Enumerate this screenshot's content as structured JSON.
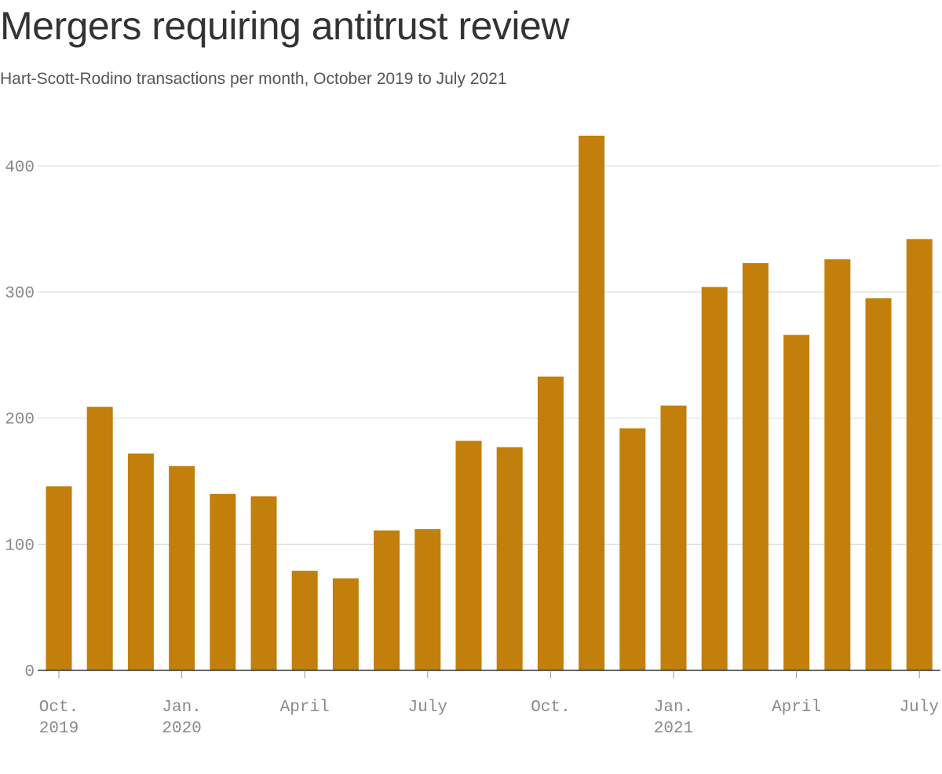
{
  "chart_data": {
    "type": "bar",
    "title": "Mergers requiring antitrust review",
    "subtitle": "Hart-Scott-Rodino transactions per month, October 2019 to July 2021",
    "bar_color": "#c27f0b",
    "categories": [
      "2019-10",
      "2019-11",
      "2019-12",
      "2020-01",
      "2020-02",
      "2020-03",
      "2020-04",
      "2020-05",
      "2020-06",
      "2020-07",
      "2020-08",
      "2020-09",
      "2020-10",
      "2020-11",
      "2020-12",
      "2021-01",
      "2021-02",
      "2021-03",
      "2021-04",
      "2021-05",
      "2021-06",
      "2021-07"
    ],
    "values": [
      146,
      209,
      172,
      162,
      140,
      138,
      79,
      73,
      111,
      112,
      182,
      177,
      233,
      424,
      192,
      210,
      304,
      323,
      266,
      326,
      295,
      342
    ],
    "ylim": [
      0,
      440
    ],
    "yticks": [
      0,
      100,
      200,
      300,
      400
    ],
    "xticks": [
      {
        "index": 0,
        "line1": "Oct.",
        "line2": "2019"
      },
      {
        "index": 3,
        "line1": "Jan.",
        "line2": "2020"
      },
      {
        "index": 6,
        "line1": "April",
        "line2": ""
      },
      {
        "index": 9,
        "line1": "July",
        "line2": ""
      },
      {
        "index": 12,
        "line1": "Oct.",
        "line2": ""
      },
      {
        "index": 15,
        "line1": "Jan.",
        "line2": "2021"
      },
      {
        "index": 18,
        "line1": "April",
        "line2": ""
      },
      {
        "index": 21,
        "line1": "July",
        "line2": ""
      }
    ],
    "xlabel": "",
    "ylabel": "",
    "grid": true
  }
}
